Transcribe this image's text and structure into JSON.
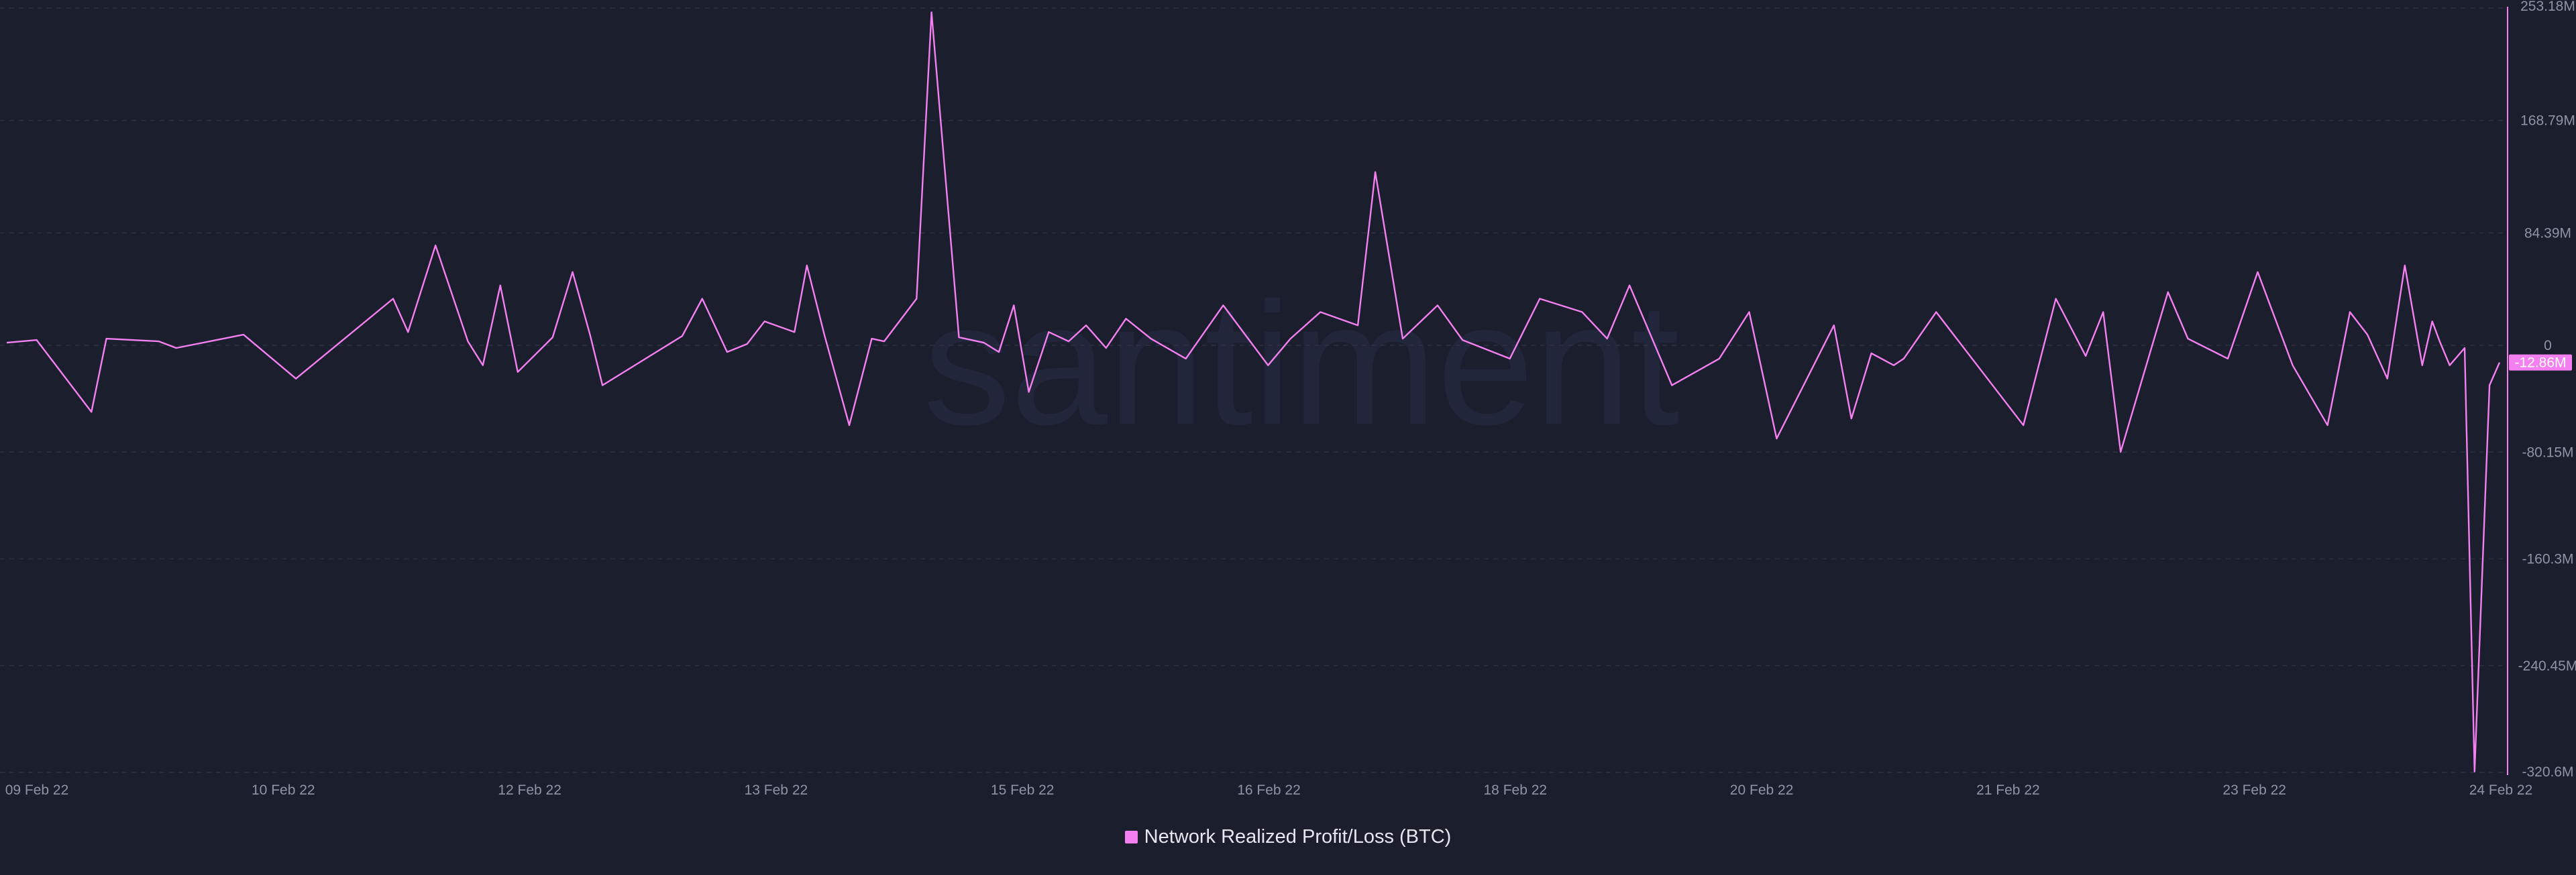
{
  "colors": {
    "background": "#1b1e2d",
    "series": "#f37ff0",
    "grid": "#2c3043",
    "axis_text": "#8e93a6",
    "watermark": "#22263a"
  },
  "watermark": "santiment",
  "chart_data": {
    "type": "line",
    "grid": true,
    "legend_position": "bottom-center",
    "x_ticks": [
      "09 Feb 22",
      "10 Feb 22",
      "12 Feb 22",
      "13 Feb 22",
      "15 Feb 22",
      "16 Feb 22",
      "18 Feb 22",
      "20 Feb 22",
      "21 Feb 22",
      "23 Feb 22",
      "24 Feb 22"
    ],
    "y_ticks": [
      "253.18M",
      "168.79M",
      "84.39M",
      "0",
      "-80.15M",
      "-160.3M",
      "-240.45M",
      "-320.6M"
    ],
    "y_tick_values": [
      253.18,
      168.79,
      84.39,
      0,
      -80.15,
      -160.3,
      -240.45,
      -320.6
    ],
    "ylim": [
      -320.6,
      253.18
    ],
    "y_unit": "M",
    "current_value_label": "-12.86M",
    "current_value": -12.86,
    "series": [
      {
        "name": "Network Realized Profit/Loss (BTC)",
        "color": "#f37ff0",
        "x": [
          0,
          0.012,
          0.034,
          0.04,
          0.061,
          0.068,
          0.095,
          0.116,
          0.155,
          0.161,
          0.172,
          0.185,
          0.191,
          0.198,
          0.205,
          0.219,
          0.227,
          0.234,
          0.239,
          0.271,
          0.279,
          0.289,
          0.297,
          0.304,
          0.316,
          0.321,
          0.328,
          0.338,
          0.347,
          0.352,
          0.365,
          0.371,
          0.382,
          0.392,
          0.398,
          0.404,
          0.41,
          0.418,
          0.426,
          0.433,
          0.441,
          0.449,
          0.459,
          0.473,
          0.488,
          0.506,
          0.515,
          0.527,
          0.542,
          0.549,
          0.56,
          0.574,
          0.584,
          0.603,
          0.615,
          0.632,
          0.642,
          0.651,
          0.668,
          0.687,
          0.699,
          0.71,
          0.733,
          0.74,
          0.748,
          0.757,
          0.761,
          0.774,
          0.781,
          0.809,
          0.822,
          0.834,
          0.841,
          0.848,
          0.867,
          0.875,
          0.891,
          0.903,
          0.917,
          0.931,
          0.94,
          0.947,
          0.955,
          0.962,
          0.969,
          0.973,
          0.976,
          0.98,
          0.986,
          0.99,
          0.996,
          1.0
        ],
        "values": [
          2,
          4,
          -50,
          5,
          3,
          -2,
          8,
          -25,
          35,
          10,
          75,
          3,
          -15,
          45,
          -20,
          6,
          55,
          8,
          -30,
          7,
          35,
          -5,
          1,
          18,
          10,
          60,
          8,
          -60,
          5,
          3,
          35,
          250,
          6,
          2,
          -5,
          30,
          -35,
          10,
          3,
          15,
          -2,
          20,
          5,
          -10,
          30,
          -15,
          5,
          25,
          15,
          130,
          5,
          30,
          4,
          -10,
          35,
          25,
          5,
          45,
          -30,
          -10,
          25,
          -70,
          15,
          -55,
          -6,
          -15,
          -10,
          25,
          8,
          -60,
          35,
          -8,
          25,
          -80,
          40,
          5,
          -10,
          55,
          -15,
          -60,
          25,
          8,
          -25,
          60,
          -15,
          18,
          3,
          -15,
          -2,
          -320,
          -30,
          -12.86
        ]
      }
    ]
  }
}
